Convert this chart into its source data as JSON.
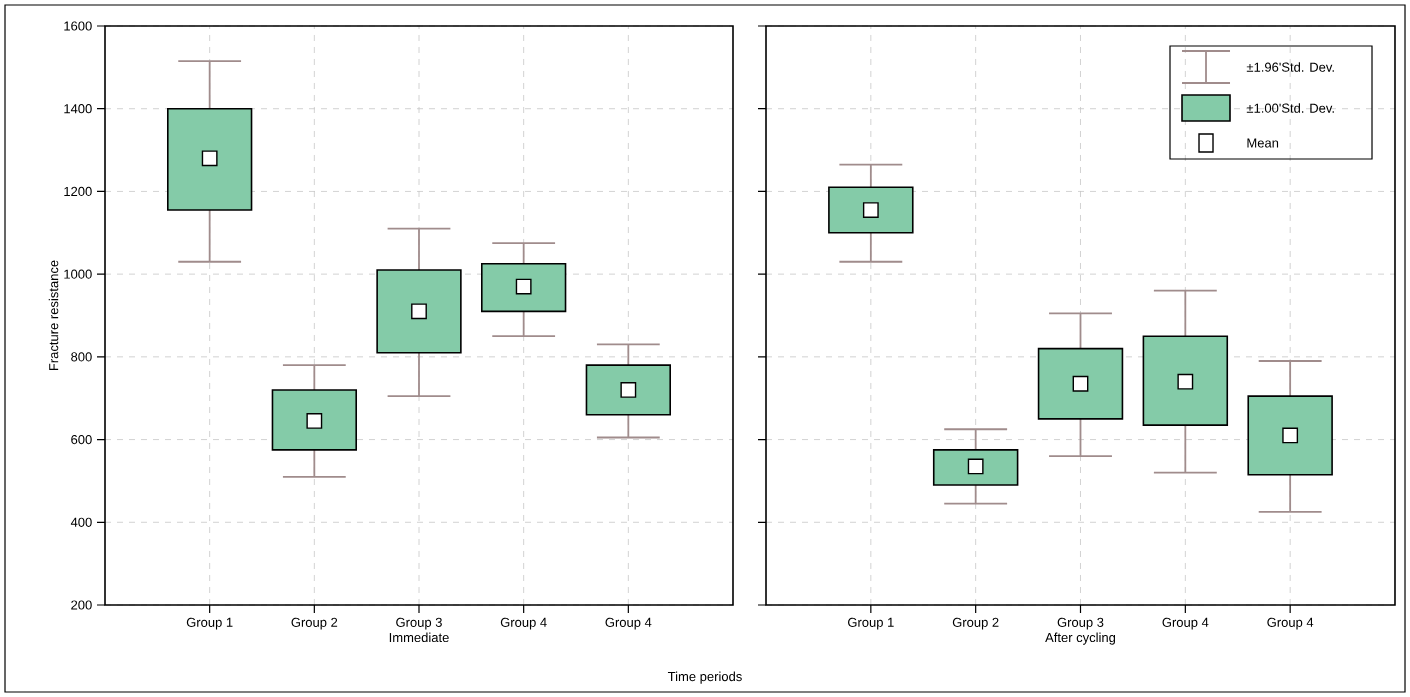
{
  "chart_data": [
    {
      "type": "box",
      "xlabel": "Immediate",
      "ylabel": "Fracture resistance",
      "categories": [
        "Group 1",
        "Group 2",
        "Group 3",
        "Group 4",
        "Group 4"
      ],
      "ylim": [
        200,
        1600
      ],
      "yticks": [
        200,
        400,
        600,
        800,
        1000,
        1200,
        1400,
        1600
      ],
      "grid": true,
      "marker": "square",
      "annotations": [
        "Time periods"
      ],
      "series": [
        {
          "color": "#84cba8",
          "boxes": [
            {
              "low": 1030,
              "q1": 1155,
              "mean": 1280,
              "q3": 1400,
              "high": 1515
            },
            {
              "low": 510,
              "q1": 575,
              "mean": 645,
              "q3": 720,
              "high": 780
            },
            {
              "low": 705,
              "q1": 810,
              "mean": 910,
              "q3": 1010,
              "high": 1110
            },
            {
              "low": 850,
              "q1": 910,
              "mean": 970,
              "q3": 1025,
              "high": 1075
            },
            {
              "low": 605,
              "q1": 660,
              "mean": 720,
              "q3": 780,
              "high": 830
            }
          ]
        }
      ]
    },
    {
      "type": "box",
      "xlabel": "After cycling",
      "categories": [
        "Group 1",
        "Group 2",
        "Group 3",
        "Group 4",
        "Group 4"
      ],
      "ylim": [
        200,
        1600
      ],
      "yticks": [
        200,
        400,
        600,
        800,
        1000,
        1200,
        1400,
        1600
      ],
      "grid": true,
      "tick_labels": "x",
      "marker": "square",
      "annotations": [
        "±1.96'Std. Dev.",
        "±1.00'Std. Dev.",
        "Mean"
      ],
      "series": [
        {
          "color": "#84cba8",
          "boxes": [
            {
              "low": 1030,
              "q1": 1100,
              "mean": 1155,
              "q3": 1210,
              "high": 1265
            },
            {
              "low": 445,
              "q1": 490,
              "mean": 535,
              "q3": 575,
              "high": 625
            },
            {
              "low": 560,
              "q1": 650,
              "mean": 735,
              "q3": 820,
              "high": 905
            },
            {
              "low": 520,
              "q1": 635,
              "mean": 740,
              "q3": 850,
              "high": 960
            },
            {
              "low": 425,
              "q1": 515,
              "mean": 610,
              "q3": 705,
              "high": 790
            }
          ]
        }
      ]
    }
  ]
}
